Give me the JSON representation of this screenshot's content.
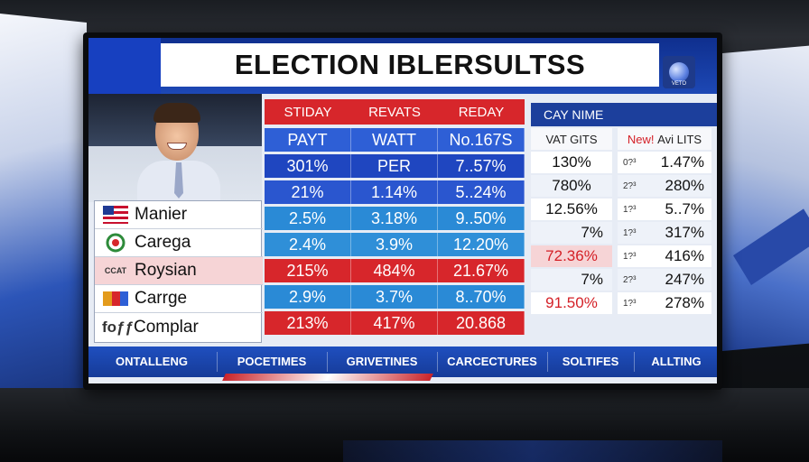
{
  "title": "ELECTION IBLERSULTSS",
  "logo_text": "VETO",
  "header_red": [
    "STIDAY",
    "REVATS",
    "REDAY"
  ],
  "header_blue": "CAY NIME",
  "main_rows": [
    {
      "cells": [
        "PAYT",
        "WATT",
        "No.167S"
      ],
      "color": "#2e5fd6"
    },
    {
      "cells": [
        "301%",
        "PER",
        "7..57%"
      ],
      "color": "#1f46c0"
    },
    {
      "cells": [
        "21%",
        "1.14%",
        "5..24%"
      ],
      "color": "#2a56cf"
    },
    {
      "cells": [
        "2.5%",
        "3.18%",
        "9..50%"
      ],
      "color": "#2a8ad6"
    },
    {
      "cells": [
        "2.4%",
        "3.9%",
        "12.20%"
      ],
      "color": "#2f8fd8"
    },
    {
      "cells": [
        "215%",
        "484%",
        "21.67%"
      ],
      "color": "#d7262b"
    },
    {
      "cells": [
        "2.9%",
        "3.7%",
        "8..70%"
      ],
      "color": "#2a8ad6"
    },
    {
      "cells": [
        "213%",
        "417%",
        "20.868"
      ],
      "color": "#d7262b"
    }
  ],
  "candidates": [
    {
      "name": "Manier",
      "icon": "us-flag-icon"
    },
    {
      "name": "Carega",
      "icon": "wreath-icon"
    },
    {
      "name": "Roysian",
      "icon": "seal-icon",
      "icon_text": "CCAT"
    },
    {
      "name": "Carrge",
      "icon": "flag-icon"
    },
    {
      "name": "Complar",
      "icon": "text-icon",
      "icon_text": "foƒƒ"
    }
  ],
  "col_right1": {
    "header": "VAT GITS",
    "values": [
      "130%",
      "780%",
      "12.56%",
      "7%",
      "72.36%",
      "7%",
      "91.50%"
    ]
  },
  "col_right2": {
    "header_new": "New!",
    "header_rest": "Avi LITS",
    "rows": [
      {
        "pre": "0?³",
        "val": "1.47%"
      },
      {
        "pre": "2?³",
        "val": "280%"
      },
      {
        "pre": "1?³",
        "val": "5..7%"
      },
      {
        "pre": "1?³",
        "val": "317%"
      },
      {
        "pre": "1?³",
        "val": "416%"
      },
      {
        "pre": "2?³",
        "val": "247%"
      },
      {
        "pre": "1?³",
        "val": "278%"
      }
    ]
  },
  "bottom_tabs": [
    "ONTALLENG",
    "POCETIMES",
    "GRIVETINES",
    "CARCECTURES",
    "SOLTIFES",
    "ALLTING"
  ]
}
